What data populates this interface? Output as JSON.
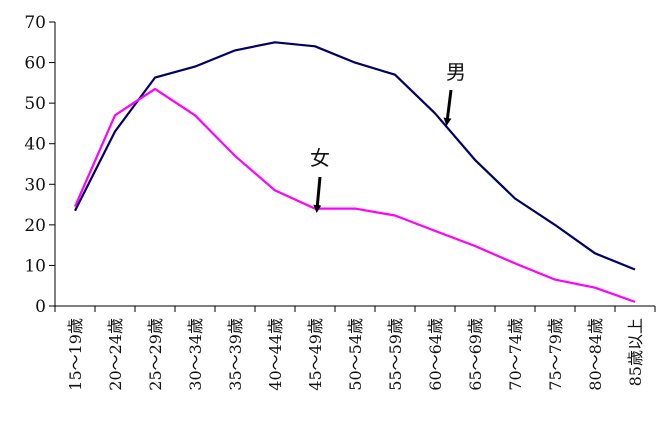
{
  "chart_data": {
    "type": "line",
    "title": "",
    "xlabel": "",
    "ylabel": "",
    "ylim": [
      0,
      70
    ],
    "yticks": [
      0,
      10,
      20,
      30,
      40,
      50,
      60,
      70
    ],
    "grid": false,
    "legend": "none",
    "categories": [
      "15～19歳",
      "20～24歳",
      "25～29歳",
      "30～34歳",
      "35～39歳",
      "40～44歳",
      "45～49歳",
      "50～54歳",
      "55～59歳",
      "60～64歳",
      "65～69歳",
      "70～74歳",
      "75～79歳",
      "80～84歳",
      "85歳以上"
    ],
    "series": [
      {
        "name": "男",
        "color": "#000066",
        "values": [
          23.5,
          43,
          56.3,
          59,
          63,
          65,
          64,
          60,
          57,
          47.5,
          36,
          26.5,
          20,
          13,
          9
        ]
      },
      {
        "name": "女",
        "color": "#ff00ff",
        "values": [
          24.5,
          47,
          53.5,
          47,
          37,
          28.5,
          24,
          24,
          22.3,
          18.5,
          14.8,
          10.5,
          6.5,
          4.5,
          1
        ]
      }
    ],
    "annotations": [
      {
        "text": "男",
        "series": 0
      },
      {
        "text": "女",
        "series": 1
      }
    ]
  }
}
